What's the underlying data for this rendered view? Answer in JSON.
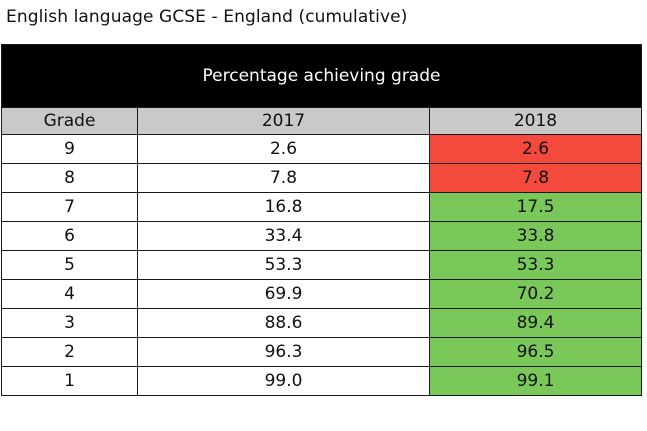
{
  "caption": "English language GCSE - England (cumulative)",
  "colors": {
    "title_background": "#000000",
    "header_background": "#c9c9c9",
    "decrease_or_same": "#f44a3d",
    "increase": "#7bc85a"
  },
  "chart_data": {
    "type": "table",
    "title": "Percentage achieving grade",
    "columns": [
      "Grade",
      "2017",
      "2018"
    ],
    "rows": [
      {
        "grade": "9",
        "y2017": "2.6",
        "y2018": "2.6",
        "highlight": "red"
      },
      {
        "grade": "8",
        "y2017": "7.8",
        "y2018": "7.8",
        "highlight": "red"
      },
      {
        "grade": "7",
        "y2017": "16.8",
        "y2018": "17.5",
        "highlight": "green"
      },
      {
        "grade": "6",
        "y2017": "33.4",
        "y2018": "33.8",
        "highlight": "green"
      },
      {
        "grade": "5",
        "y2017": "53.3",
        "y2018": "53.3",
        "highlight": "green"
      },
      {
        "grade": "4",
        "y2017": "69.9",
        "y2018": "70.2",
        "highlight": "green"
      },
      {
        "grade": "3",
        "y2017": "88.6",
        "y2018": "89.4",
        "highlight": "green"
      },
      {
        "grade": "2",
        "y2017": "96.3",
        "y2018": "96.5",
        "highlight": "green"
      },
      {
        "grade": "1",
        "y2017": "99.0",
        "y2018": "99.1",
        "highlight": "green"
      }
    ]
  }
}
